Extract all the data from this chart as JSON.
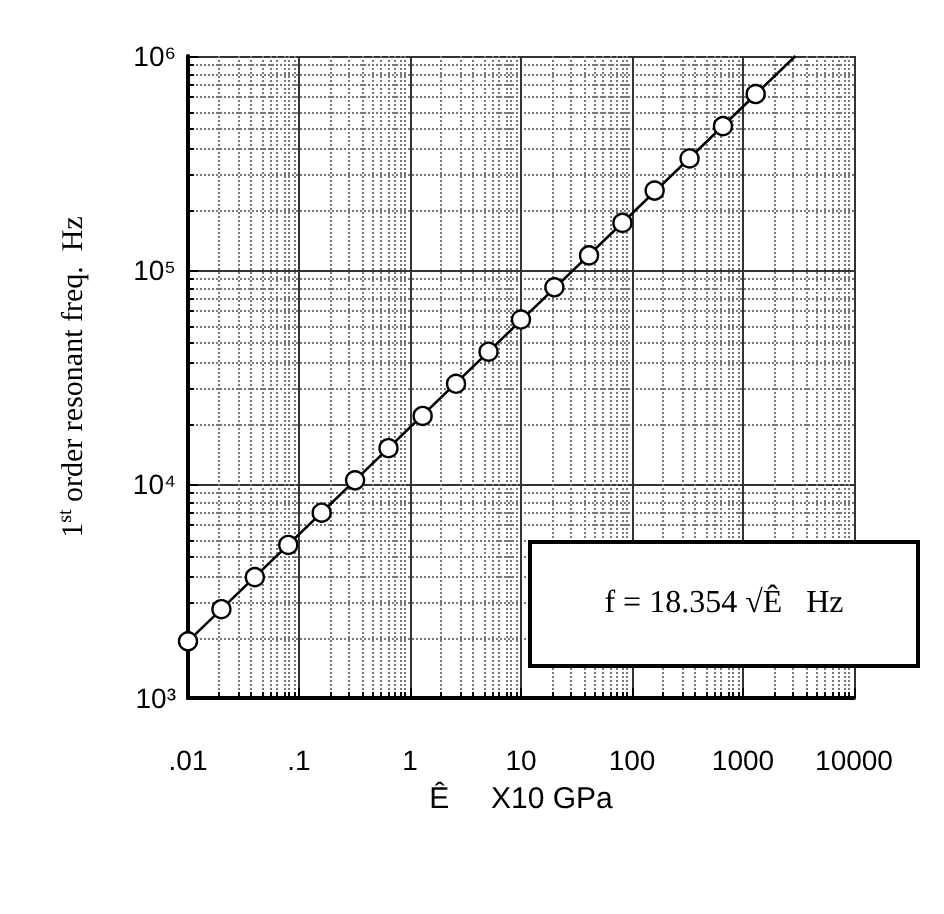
{
  "chart_data": {
    "type": "scatter",
    "xlabel": "Ê     X10 GPa",
    "ylabel": "1$^{st}$ order resonant freq.  Hz",
    "log": "xy",
    "grid": true,
    "marker": "circle",
    "xlim": [
      0.01,
      10000
    ],
    "xticks": [
      {
        "value": 0.01,
        "label": ".01"
      },
      {
        "value": 0.1,
        "label": ".1"
      },
      1,
      10,
      100,
      1000,
      10000
    ],
    "ylim": [
      1000,
      1000000
    ],
    "yticks": [
      {
        "value": 1000,
        "label": "10³"
      },
      {
        "value": 10000,
        "label": "10⁴"
      },
      {
        "value": 100000,
        "label": "10⁵"
      },
      {
        "value": 1000000,
        "label": "10⁶"
      }
    ],
    "annotations": [
      "f = 18.354 √Ê   Hz"
    ],
    "series": [
      {
        "color": "#000000",
        "x": [
          0.01,
          0.02,
          0.04,
          0.08,
          0.16,
          0.32,
          0.64,
          1.3,
          2.6,
          5.1,
          10,
          20,
          41,
          82,
          160,
          330,
          660,
          1300
        ],
        "values": [
          1840,
          2600,
          3670,
          5190,
          7340,
          10400,
          14700,
          20800,
          29400,
          41500,
          58700,
          83000,
          117000,
          166000,
          235000,
          332000,
          470000,
          664000
        ]
      },
      {
        "type": "line",
        "color": "#000000",
        "marker": "none",
        "x": [
          0.01,
          2970
        ],
        "values": [
          1840,
          1000000
        ]
      }
    ]
  }
}
